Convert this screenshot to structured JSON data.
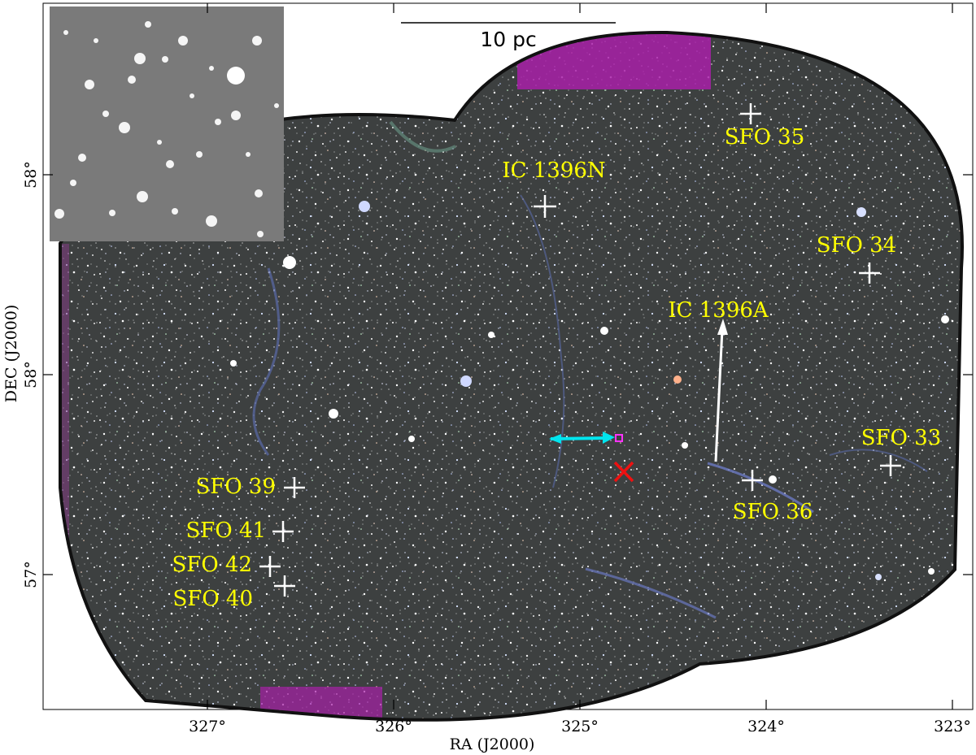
{
  "axes": {
    "xlabel": "RA (J2000)",
    "ylabel": "DEC (J2000)",
    "x_ticks": [
      "327°",
      "326°",
      "325°",
      "324°",
      "323°"
    ],
    "y_ticks": [
      "58°",
      "58°",
      "57°"
    ]
  },
  "scale_bar": {
    "label": "10 pc"
  },
  "regions": [
    {
      "name": "SFO 35"
    },
    {
      "name": "IC 1396N"
    },
    {
      "name": "SFO 34"
    },
    {
      "name": "IC 1396A"
    },
    {
      "name": "SFO 33"
    },
    {
      "name": "SFO 36"
    },
    {
      "name": "SFO 39"
    },
    {
      "name": "SFO 41"
    },
    {
      "name": "SFO 42"
    },
    {
      "name": "SFO 40"
    }
  ],
  "colors": {
    "label": "#ffff00",
    "marker": "#ffffff",
    "field_bg": "#3a3d3d",
    "cyan_arrow": "#00e5ee",
    "red_x": "#ee1111",
    "magenta_box": "#ff33ff"
  }
}
